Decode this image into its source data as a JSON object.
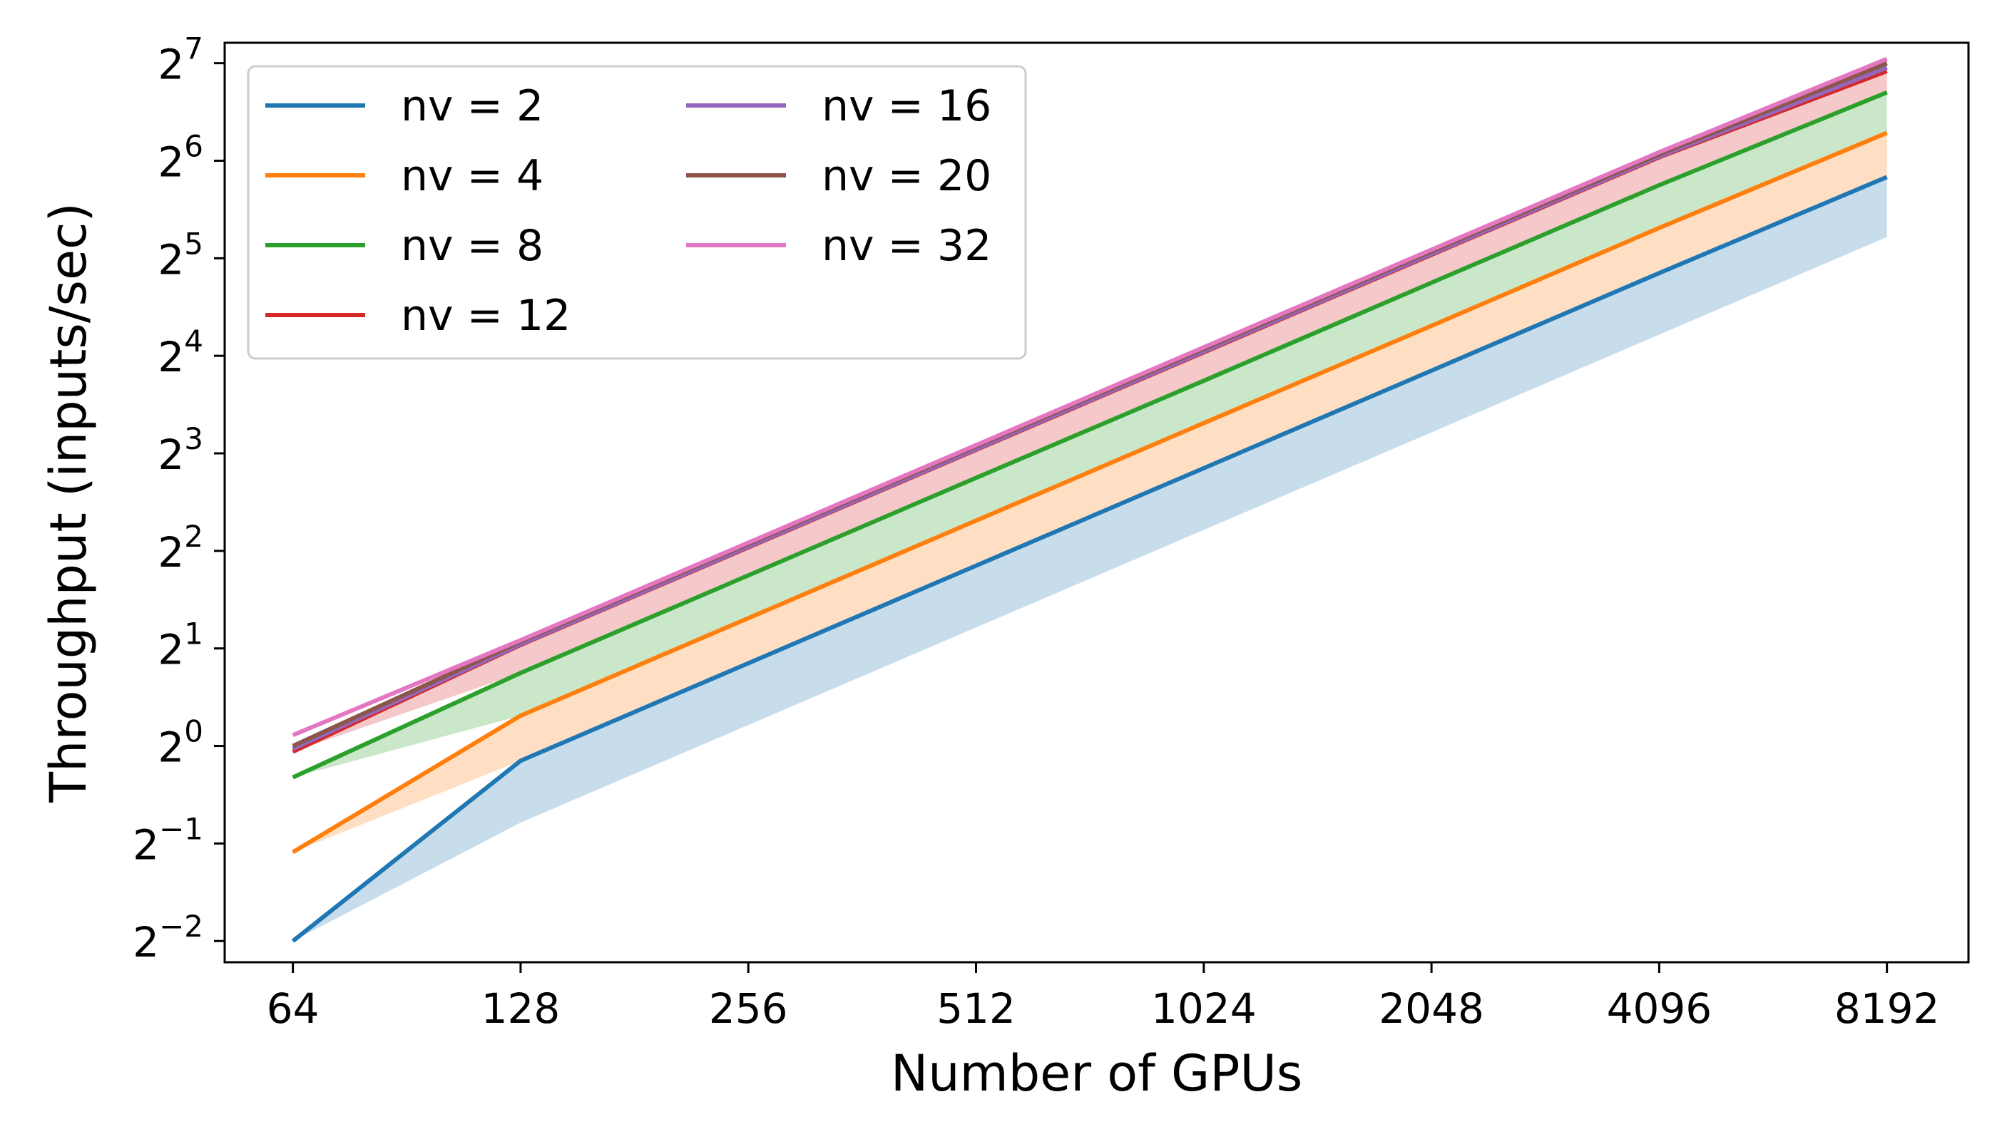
{
  "chart_data": {
    "type": "line",
    "xlabel": "Number of GPUs",
    "ylabel": "Throughput (inputs/sec)",
    "x": [
      64,
      128,
      256,
      512,
      1024,
      2048,
      4096,
      8192
    ],
    "x_tick_labels": [
      "64",
      "128",
      "256",
      "512",
      "1024",
      "2048",
      "4096",
      "8192"
    ],
    "x_scale": "log2",
    "y_scale": "log2",
    "xlim": [
      52,
      10500
    ],
    "ylim": [
      0.215,
      148
    ],
    "y_ticks": [
      {
        "base": "2",
        "exp": "−2",
        "value": 0.25
      },
      {
        "base": "2",
        "exp": "−1",
        "value": 0.5
      },
      {
        "base": "2",
        "exp": "0",
        "value": 1
      },
      {
        "base": "2",
        "exp": "1",
        "value": 2
      },
      {
        "base": "2",
        "exp": "2",
        "value": 4
      },
      {
        "base": "2",
        "exp": "3",
        "value": 8
      },
      {
        "base": "2",
        "exp": "4",
        "value": 16
      },
      {
        "base": "2",
        "exp": "5",
        "value": 32
      },
      {
        "base": "2",
        "exp": "6",
        "value": 64
      },
      {
        "base": "2",
        "exp": "7",
        "value": 128
      }
    ],
    "grid": false,
    "legend": {
      "placement": "top-left",
      "columns": 2
    },
    "series": [
      {
        "name": "nv = 2",
        "color": "#1f77b4",
        "values": [
          0.25,
          0.9,
          1.8,
          3.6,
          7.2,
          14.4,
          28.8,
          57.0
        ]
      },
      {
        "name": "nv = 4",
        "color": "#ff7f0e",
        "values": [
          0.47,
          1.24,
          2.48,
          4.96,
          9.92,
          19.8,
          39.7,
          78.0
        ]
      },
      {
        "name": "nv = 8",
        "color": "#2ca02c",
        "values": [
          0.8,
          1.68,
          3.36,
          6.72,
          13.4,
          26.9,
          53.8,
          104.0
        ]
      },
      {
        "name": "nv = 12",
        "color": "#d62728",
        "values": [
          0.96,
          2.05,
          4.1,
          8.2,
          16.4,
          32.8,
          65.6,
          121.0
        ]
      },
      {
        "name": "nv = 16",
        "color": "#9467bd",
        "values": [
          0.98,
          2.06,
          4.12,
          8.24,
          16.5,
          33.0,
          66.0,
          124.0
        ]
      },
      {
        "name": "nv = 20",
        "color": "#8c564b",
        "values": [
          1.0,
          2.1,
          4.2,
          8.4,
          16.8,
          33.6,
          67.0,
          128.0
        ]
      },
      {
        "name": "nv = 32",
        "color": "#e377c2",
        "values": [
          1.08,
          2.12,
          4.24,
          8.48,
          17.0,
          34.0,
          68.0,
          132.0
        ]
      }
    ],
    "bands": [
      {
        "color": "#1f77b4",
        "lower": [
          0.25,
          0.58,
          1.16,
          2.32,
          4.64,
          9.28,
          18.6,
          37.2
        ],
        "upper": [
          0.25,
          0.9,
          1.8,
          3.6,
          7.2,
          14.4,
          28.8,
          57.0
        ]
      },
      {
        "color": "#ff7f0e",
        "lower": [
          0.47,
          0.9,
          1.8,
          3.6,
          7.2,
          14.4,
          28.8,
          57.0
        ],
        "upper": [
          0.47,
          1.24,
          2.48,
          4.96,
          9.92,
          19.8,
          39.7,
          78.0
        ]
      },
      {
        "color": "#2ca02c",
        "lower": [
          0.8,
          1.24,
          2.48,
          4.96,
          9.92,
          19.8,
          39.7,
          78.0
        ],
        "upper": [
          0.8,
          1.68,
          3.36,
          6.72,
          13.4,
          26.9,
          53.8,
          104.0
        ]
      },
      {
        "color": "#d62728",
        "lower": [
          0.96,
          1.68,
          3.36,
          6.72,
          13.4,
          26.9,
          53.8,
          104.0
        ],
        "upper": [
          0.96,
          2.05,
          4.1,
          8.2,
          16.4,
          32.8,
          65.6,
          121.0
        ]
      },
      {
        "color": "#9467bd",
        "lower": [
          0.98,
          2.05,
          4.1,
          8.2,
          16.4,
          32.8,
          65.6,
          121.0
        ],
        "upper": [
          0.98,
          2.06,
          4.12,
          8.24,
          16.5,
          33.0,
          66.0,
          124.0
        ]
      },
      {
        "color": "#8c564b",
        "lower": [
          1.0,
          2.06,
          4.12,
          8.24,
          16.5,
          33.0,
          66.0,
          124.0
        ],
        "upper": [
          1.0,
          2.1,
          4.2,
          8.4,
          16.8,
          33.6,
          67.0,
          128.0
        ]
      },
      {
        "color": "#e377c2",
        "lower": [
          1.08,
          2.1,
          4.2,
          8.4,
          16.8,
          33.6,
          67.0,
          128.0
        ],
        "upper": [
          1.08,
          2.12,
          4.24,
          8.48,
          17.0,
          34.0,
          68.0,
          132.0
        ]
      }
    ]
  }
}
